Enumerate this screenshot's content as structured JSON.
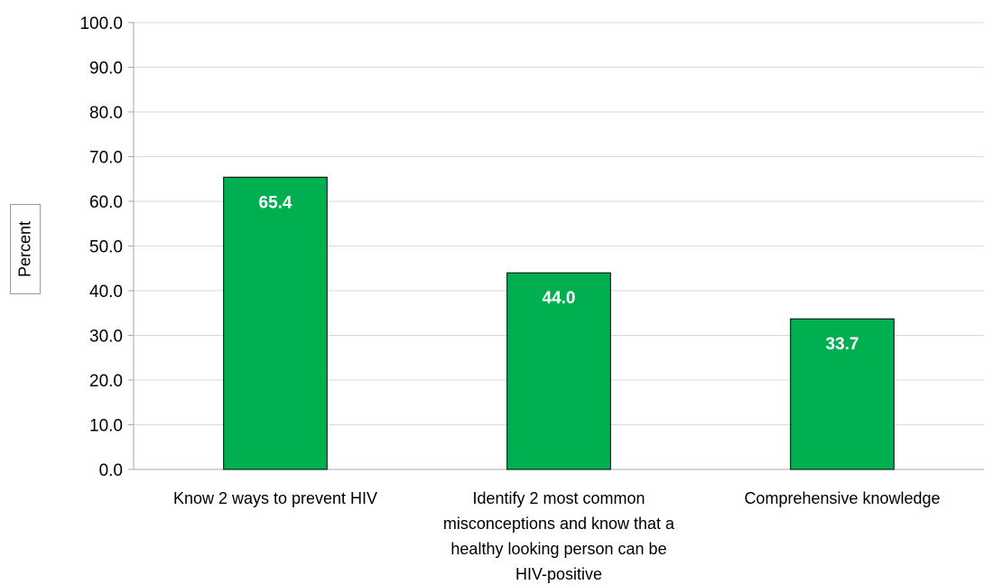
{
  "chart_data": {
    "type": "bar",
    "categories": [
      "Know 2 ways to prevent HIV",
      "Identify 2 most common misconceptions and know that a healthy looking person can be HIV-positive",
      "Comprehensive knowledge"
    ],
    "category_lines": [
      [
        "Know 2 ways to prevent HIV"
      ],
      [
        "Identify 2 most common",
        "misconceptions and know that a",
        "healthy looking person can be",
        "HIV-positive"
      ],
      [
        "Comprehensive knowledge"
      ]
    ],
    "values": [
      65.4,
      44.0,
      33.7
    ],
    "data_labels": [
      "65.4",
      "44.0",
      "33.7"
    ],
    "ylabel": "Percent",
    "ylim": [
      0,
      100
    ],
    "yticks": [
      "0.0",
      "10.0",
      "20.0",
      "30.0",
      "40.0",
      "50.0",
      "60.0",
      "70.0",
      "80.0",
      "90.0",
      "100.0"
    ],
    "grid": true,
    "bar_color": "#00b050",
    "bar_edge_color": "#000000",
    "grid_color": "#d9d9d9",
    "legend": "none"
  }
}
